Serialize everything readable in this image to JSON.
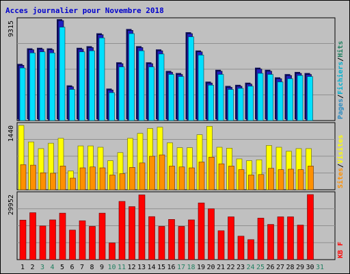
{
  "title": "Acces journalier pour Novembre 2018",
  "colors": {
    "bg": "#c0c0c0",
    "border": "#000000",
    "title": "#0000cc",
    "hits": "#00e0ff",
    "hits_dark": "#2020c0",
    "files": "#00b0d0",
    "pages": "#2a8ac0",
    "visits": "#ffff00",
    "sites": "#ff9000",
    "kb": "#ff0000",
    "weekday": "#000000",
    "weekend": "#208060"
  },
  "chart_data": [
    {
      "type": "bar",
      "name": "top",
      "ymax_label": "9315",
      "ymax": 9315,
      "legend": [
        {
          "text": "Pages",
          "color": "#2a8ac0"
        },
        {
          "text": "/",
          "color": "#000000"
        },
        {
          "text": "Fichiers",
          "color": "#00b0d0"
        },
        {
          "text": "/",
          "color": "#000000"
        },
        {
          "text": "Hits",
          "color": "#208060"
        }
      ],
      "series": [
        {
          "name": "Pages",
          "values": [
            4900,
            6300,
            6400,
            6300,
            8700,
            2900,
            6400,
            6500,
            7700,
            2600,
            5000,
            8100,
            6500,
            5000,
            6200,
            4300,
            4100,
            7800,
            6100,
            3300,
            4300,
            2900,
            3000,
            3200,
            4400,
            4300,
            3600,
            3900,
            4200,
            4100
          ]
        },
        {
          "name": "Hits",
          "values": [
            5150,
            6600,
            6650,
            6600,
            9315,
            3150,
            6650,
            6800,
            8000,
            2850,
            5300,
            8400,
            6800,
            5300,
            6500,
            4500,
            4300,
            8100,
            6400,
            3500,
            4600,
            3100,
            3200,
            3400,
            4800,
            4600,
            3900,
            4200,
            4400,
            4300
          ]
        }
      ]
    },
    {
      "type": "bar",
      "name": "middle",
      "ymax_label": "1440",
      "ymax": 1440,
      "legend": [
        {
          "text": "Sites",
          "color": "#ff9000"
        },
        {
          "text": "/",
          "color": "#000000"
        },
        {
          "text": "Visites",
          "color": "#ffff00"
        }
      ],
      "series": [
        {
          "name": "Visites",
          "values": [
            1440,
            1070,
            920,
            1040,
            1150,
            420,
            980,
            980,
            950,
            650,
            830,
            1150,
            1260,
            1370,
            1400,
            1050,
            940,
            940,
            1230,
            1420,
            950,
            930,
            690,
            650,
            670,
            990,
            950,
            860,
            920,
            920
          ]
        },
        {
          "name": "Sites",
          "values": [
            560,
            550,
            380,
            370,
            530,
            260,
            490,
            510,
            490,
            330,
            360,
            500,
            600,
            750,
            780,
            530,
            510,
            490,
            620,
            730,
            580,
            530,
            450,
            330,
            340,
            480,
            450,
            460,
            450,
            530
          ]
        }
      ]
    },
    {
      "type": "bar",
      "name": "bottom",
      "ymax_label": "29952",
      "ymax": 29952,
      "legend": [
        {
          "text": "KB F",
          "color": "#ff0000"
        }
      ],
      "series": [
        {
          "name": "KB F",
          "values": [
            18200,
            21600,
            15500,
            18300,
            21400,
            13600,
            17900,
            15300,
            21400,
            7700,
            26800,
            24400,
            29800,
            19800,
            15300,
            18500,
            15300,
            18300,
            26100,
            23400,
            13300,
            19700,
            10800,
            9200,
            19100,
            16200,
            19700,
            19700,
            15900,
            29952
          ]
        }
      ]
    }
  ],
  "days": [
    "1",
    "2",
    "3",
    "4",
    "5",
    "6",
    "7",
    "8",
    "9",
    "10",
    "11",
    "12",
    "13",
    "14",
    "15",
    "16",
    "17",
    "18",
    "19",
    "20",
    "21",
    "22",
    "23",
    "24",
    "25",
    "26",
    "27",
    "28",
    "29",
    "30",
    "31"
  ],
  "weekend_days": [
    3,
    4,
    10,
    11,
    17,
    18,
    24,
    25,
    31
  ]
}
